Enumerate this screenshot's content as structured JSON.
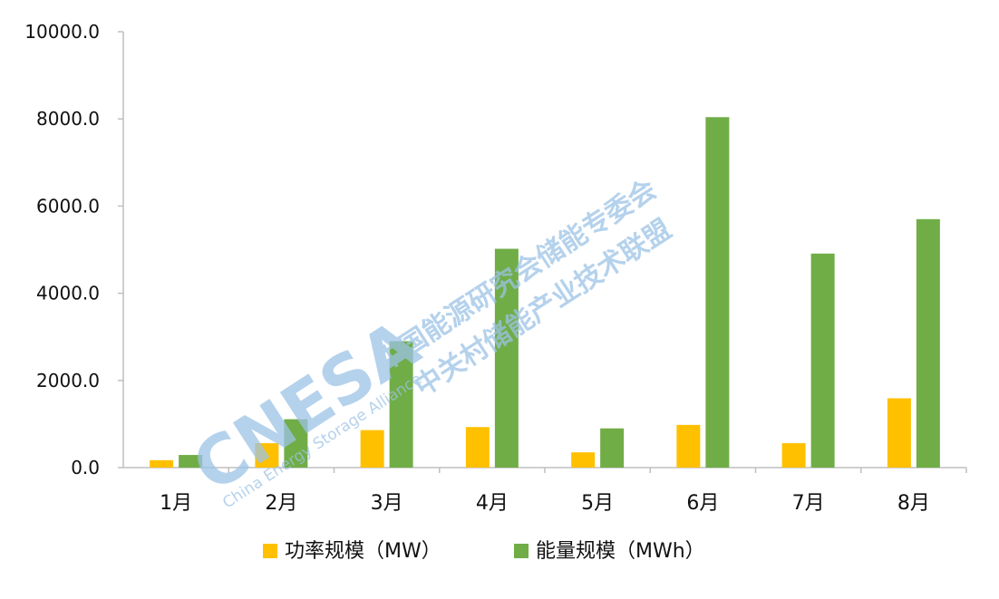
{
  "chart_data": {
    "type": "bar",
    "title": "",
    "xlabel": "",
    "ylabel": "",
    "categories": [
      "1月",
      "2月",
      "3月",
      "4月",
      "5月",
      "6月",
      "7月",
      "8月"
    ],
    "series": [
      {
        "name": "功率规模（MW）",
        "color": "#FFC000",
        "values": [
          170,
          560,
          860,
          930,
          350,
          980,
          560,
          1590
        ]
      },
      {
        "name": "能量规模（MWh）",
        "color": "#70AD47",
        "values": [
          290,
          1110,
          2900,
          5020,
          900,
          8040,
          4910,
          5700
        ]
      }
    ],
    "ylim": [
      0,
      10000
    ],
    "yticks": [
      "0.0",
      "2000.0",
      "4000.0",
      "6000.0",
      "8000.0",
      "10000.0"
    ],
    "grid": false,
    "legend_position": "bottom"
  },
  "watermark": {
    "logo": "CNESA",
    "subtitle": "China Energy Storage Alliance",
    "line1": "中国能源研究会储能专委会",
    "line2": "中关村储能产业技术联盟",
    "color": "#9DC3E6"
  }
}
